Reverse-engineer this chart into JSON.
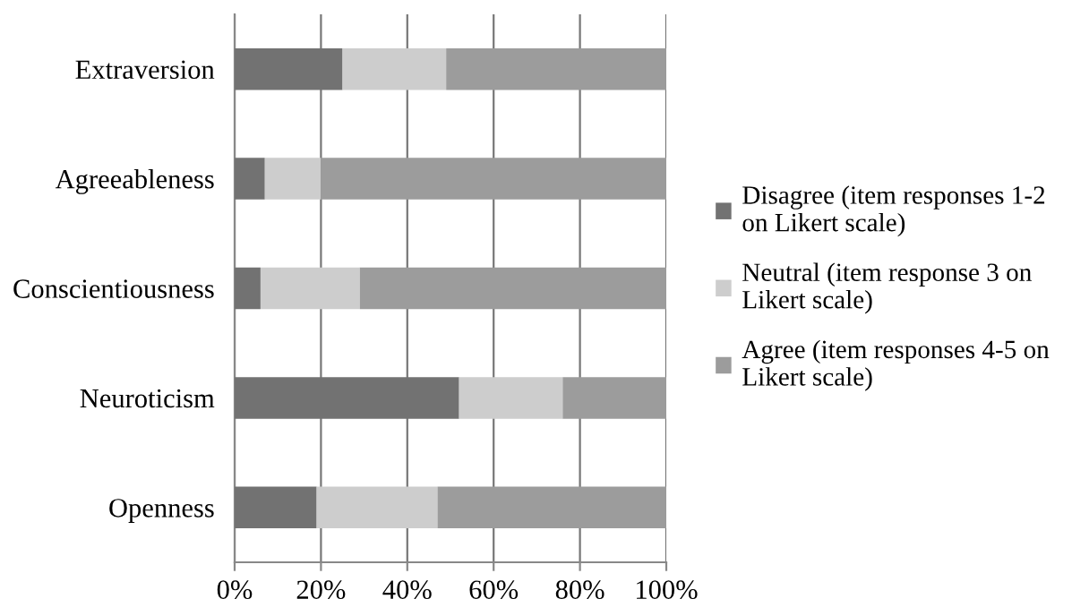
{
  "chart_data": {
    "type": "bar",
    "orientation": "horizontal",
    "stacked": true,
    "categories": [
      "Extraversion",
      "Agreeableness",
      "Conscientiousness",
      "Neuroticism",
      "Openness"
    ],
    "series": [
      {
        "name": "Disagree (item responses 1-2\non Likert scale)",
        "color": "#727272",
        "values": [
          25,
          7,
          6,
          52,
          19
        ]
      },
      {
        "name": "Neutral (item response 3 on\nLikert scale)",
        "color": "#cdcdcd",
        "values": [
          24,
          13,
          23,
          24,
          28
        ]
      },
      {
        "name": "Agree (item responses 4-5 on\nLikert scale)",
        "color": "#9c9c9c",
        "values": [
          51,
          80,
          71,
          24,
          53
        ]
      }
    ],
    "xlim": [
      0,
      100
    ],
    "xticks": [
      {
        "value": 0,
        "label": "0%"
      },
      {
        "value": 20,
        "label": "20%"
      },
      {
        "value": 40,
        "label": "40%"
      },
      {
        "value": 60,
        "label": "60%"
      },
      {
        "value": 80,
        "label": "80%"
      },
      {
        "value": 100,
        "label": "100%"
      }
    ],
    "grid": "x",
    "legend": "right"
  }
}
